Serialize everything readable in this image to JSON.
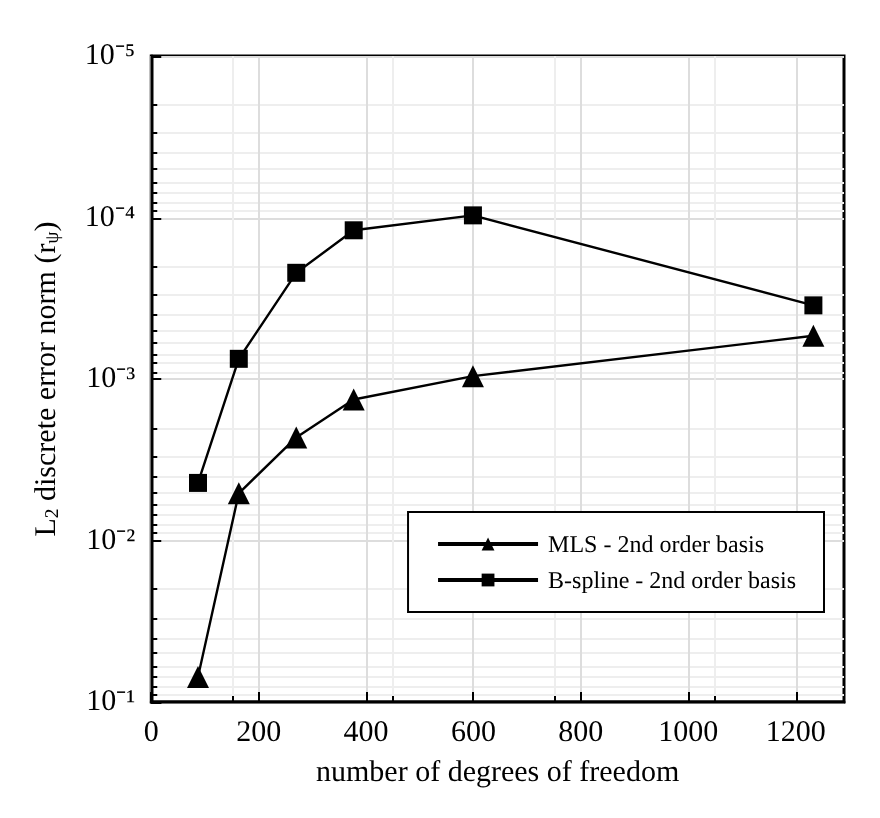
{
  "chart_data": {
    "type": "line",
    "xlabel": "number of degrees of freedom",
    "ylabel": "L$_{2}$ discrete error norm (r$_{ψ}$)",
    "series": [
      {
        "name": "MLS - 2nd order basis",
        "color": "#000000",
        "marker": "triangle",
        "x": [
          87,
          163,
          270,
          377,
          599,
          1233
        ],
        "values": [
          0.07,
          0.0051,
          0.0023,
          0.00134,
          0.00096,
          0.00054
        ]
      },
      {
        "name": "B-spline - 2nd order basis",
        "color": "#000000",
        "marker": "square",
        "x": [
          87,
          163,
          270,
          377,
          599,
          1233
        ],
        "values": [
          0.0044,
          0.00075,
          0.00022,
          0.00012,
          9.7e-05,
          0.00035
        ]
      }
    ],
    "xlim": [
      0,
      1290
    ],
    "xticks": [
      0,
      200,
      400,
      600,
      800,
      1000,
      1200
    ],
    "ylim": [
      0.1,
      1e-05
    ],
    "yticks": [
      {
        "value": 0.1,
        "label": "10⁻¹"
      },
      {
        "value": 0.01,
        "label": "10⁻²"
      },
      {
        "value": 0.001,
        "label": "10⁻³"
      },
      {
        "value": 0.0001,
        "label": "10⁻⁴"
      },
      {
        "value": 1e-05,
        "label": "10⁻⁵"
      }
    ],
    "log": "y",
    "grid": true,
    "legend": "bottom right",
    "line_style": "solid"
  }
}
